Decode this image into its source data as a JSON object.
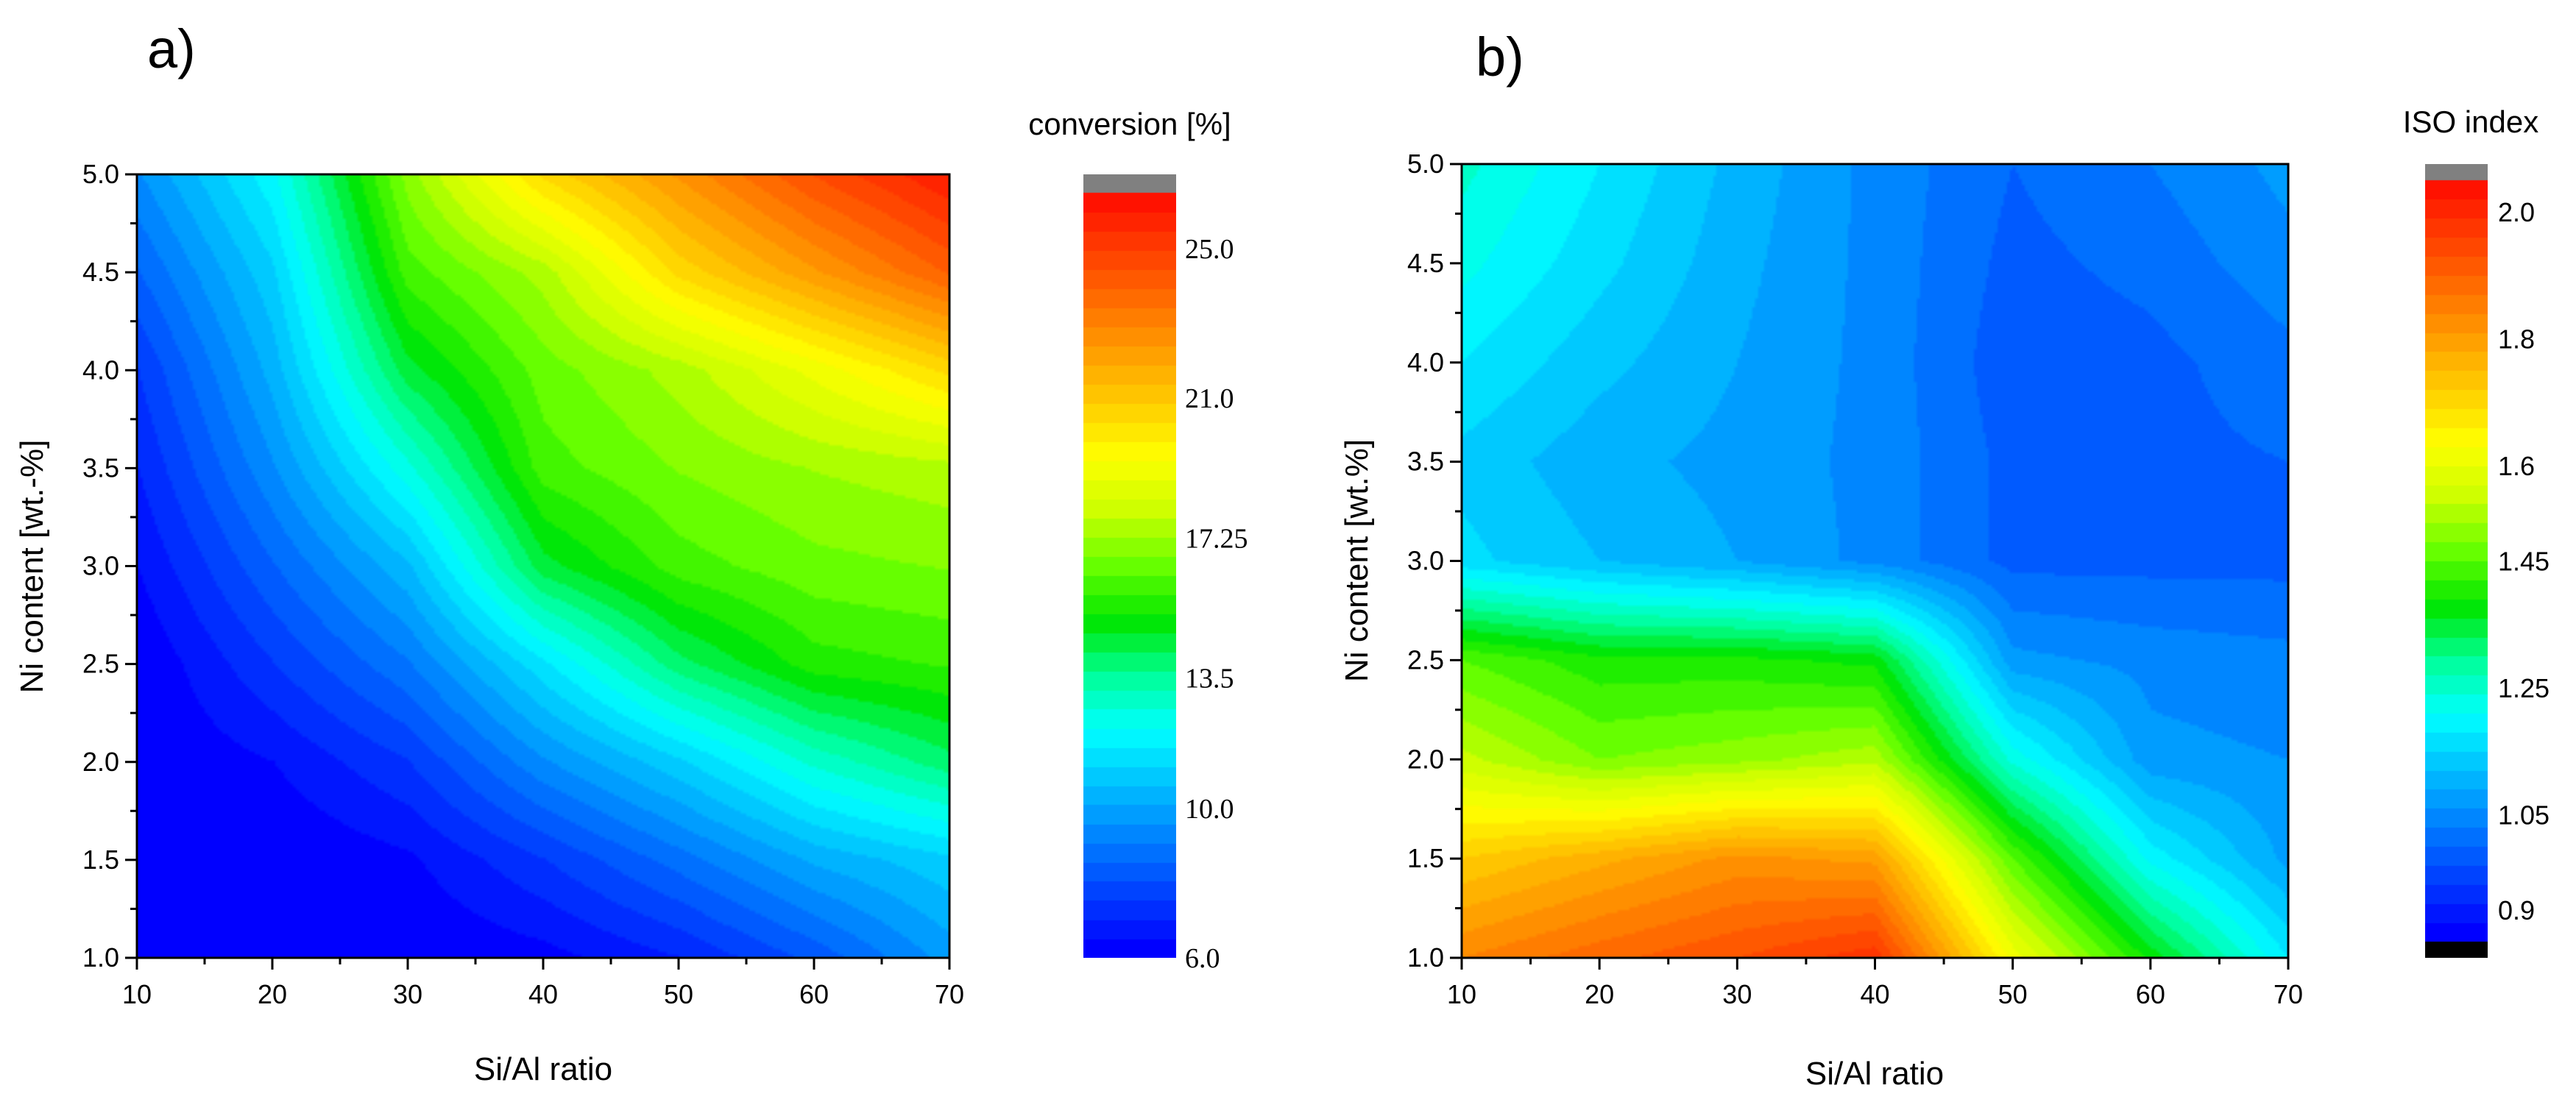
{
  "figure": {
    "panel_a_label": "a)",
    "panel_b_label": "b)"
  },
  "chart_data": [
    {
      "id": "a",
      "type": "heatmap",
      "subtype": "filled-contour",
      "title": "",
      "xlabel": "Si/Al ratio",
      "ylabel": "Ni content [wt.-%]",
      "colorbar_title": "conversion [%]",
      "xlim": [
        10,
        70
      ],
      "ylim": [
        1.0,
        5.0
      ],
      "x_ticks": [
        10,
        20,
        30,
        40,
        50,
        60,
        70
      ],
      "x_tick_labels": [
        "10",
        "20",
        "30",
        "40",
        "50",
        "60",
        "70"
      ],
      "y_ticks": [
        1.0,
        1.5,
        2.0,
        2.5,
        3.0,
        3.5,
        4.0,
        4.5,
        5.0
      ],
      "y_tick_labels": [
        "1.0",
        "1.5",
        "2.0",
        "2.5",
        "3.0",
        "3.5",
        "4.0",
        "4.5",
        "5.0"
      ],
      "x": [
        10,
        20,
        30,
        40,
        50,
        60,
        70
      ],
      "y": [
        1.0,
        1.5,
        2.0,
        2.5,
        3.0,
        3.5,
        4.0,
        4.5,
        5.0
      ],
      "z": [
        [
          6.0,
          6.0,
          6.0,
          6.3,
          7.0,
          8.2,
          9.8
        ],
        [
          6.0,
          6.0,
          6.4,
          7.5,
          8.8,
          10.2,
          11.0
        ],
        [
          6.0,
          6.5,
          7.5,
          9.5,
          11.0,
          12.8,
          14.0
        ],
        [
          6.0,
          7.5,
          9.0,
          11.5,
          14.0,
          15.5,
          15.8
        ],
        [
          6.5,
          8.5,
          10.5,
          14.5,
          16.0,
          16.6,
          16.8
        ],
        [
          7.0,
          9.5,
          12.5,
          16.0,
          16.8,
          17.3,
          17.6
        ],
        [
          7.5,
          10.3,
          14.5,
          16.5,
          17.5,
          19.0,
          20.5
        ],
        [
          8.5,
          11.0,
          16.0,
          17.5,
          20.5,
          22.3,
          24.0
        ],
        [
          9.5,
          12.0,
          17.0,
          20.5,
          22.5,
          24.5,
          26.0
        ]
      ],
      "colorbar_range": [
        6.0,
        26.5
      ],
      "colorbar_ticks": [
        6.0,
        10.0,
        13.5,
        17.25,
        21.0,
        25.0
      ],
      "colorbar_tick_labels": [
        "6.0",
        "10.0",
        "13.5",
        "17.25",
        "21.0",
        "25.0"
      ],
      "colorbar_top_swatch": "#808080",
      "colormap": [
        "#0000ff",
        "#0040ff",
        "#0080ff",
        "#00c0ff",
        "#00ffff",
        "#00ff99",
        "#00e600",
        "#66ff00",
        "#ccff00",
        "#ffff00",
        "#ffcc00",
        "#ff9900",
        "#ff6600",
        "#ff3300",
        "#ff0000"
      ]
    },
    {
      "id": "b",
      "type": "heatmap",
      "subtype": "filled-contour",
      "title": "",
      "xlabel": "Si/Al ratio",
      "ylabel": "Ni content [wt.%]",
      "colorbar_title": "ISO index",
      "xlim": [
        10,
        70
      ],
      "ylim": [
        1.0,
        5.0
      ],
      "x_ticks": [
        10,
        20,
        30,
        40,
        50,
        60,
        70
      ],
      "x_tick_labels": [
        "10",
        "20",
        "30",
        "40",
        "50",
        "60",
        "70"
      ],
      "y_ticks": [
        1.0,
        1.5,
        2.0,
        2.5,
        3.0,
        3.5,
        4.0,
        4.5,
        5.0
      ],
      "y_tick_labels": [
        "1.0",
        "1.5",
        "2.0",
        "2.5",
        "3.0",
        "3.5",
        "4.0",
        "4.5",
        "5.0"
      ],
      "x": [
        10,
        20,
        30,
        40,
        50,
        60,
        70
      ],
      "y": [
        1.0,
        1.5,
        2.0,
        2.5,
        3.0,
        3.5,
        4.0,
        4.5,
        5.0
      ],
      "z": [
        [
          1.84,
          1.89,
          1.93,
          1.98,
          1.62,
          1.38,
          1.18
        ],
        [
          1.72,
          1.77,
          1.82,
          1.8,
          1.45,
          1.2,
          1.08
        ],
        [
          1.55,
          1.48,
          1.5,
          1.53,
          1.23,
          1.07,
          1.06
        ],
        [
          1.45,
          1.4,
          1.4,
          1.38,
          1.07,
          1.05,
          1.04
        ],
        [
          1.16,
          1.12,
          1.09,
          1.05,
          0.99,
          0.99,
          0.99
        ],
        [
          1.14,
          1.1,
          1.08,
          1.05,
          0.99,
          0.99,
          1.0
        ],
        [
          1.18,
          1.13,
          1.09,
          1.05,
          0.98,
          0.99,
          1.02
        ],
        [
          1.22,
          1.16,
          1.1,
          1.05,
          0.99,
          1.01,
          1.05
        ],
        [
          1.25,
          1.18,
          1.11,
          1.05,
          1.0,
          1.03,
          1.07
        ]
      ],
      "colorbar_range": [
        0.85,
        2.05
      ],
      "colorbar_ticks": [
        0.9,
        1.05,
        1.25,
        1.45,
        1.6,
        1.8,
        2.0
      ],
      "colorbar_tick_labels": [
        "0.9",
        "1.05",
        "1.25",
        "1.45",
        "1.6",
        "1.8",
        "2.0"
      ],
      "colorbar_top_swatch": "#808080",
      "colorbar_bottom_swatch": "#000000",
      "colormap": [
        "#0000ff",
        "#0040ff",
        "#0080ff",
        "#00c0ff",
        "#00ffff",
        "#00ff99",
        "#00e600",
        "#66ff00",
        "#ccff00",
        "#ffff00",
        "#ffcc00",
        "#ff9900",
        "#ff6600",
        "#ff3300",
        "#ff0000"
      ]
    }
  ]
}
